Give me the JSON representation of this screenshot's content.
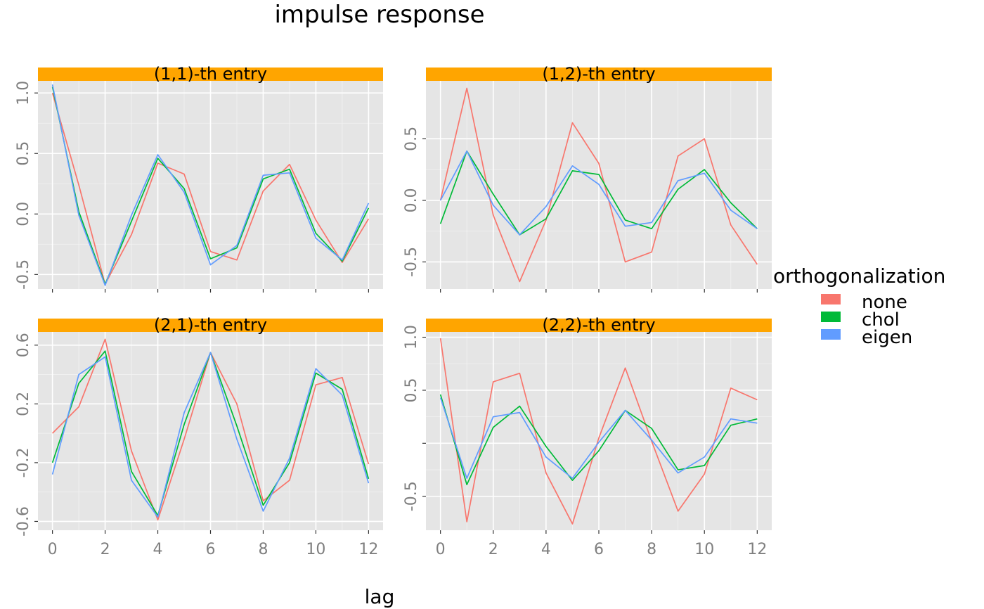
{
  "chart_data": {
    "type": "line",
    "title": "impulse response",
    "xlabel": "lag",
    "ylabel": "",
    "x": [
      0,
      1,
      2,
      3,
      4,
      5,
      6,
      7,
      8,
      9,
      10,
      11,
      12
    ],
    "x_ticks": [
      0,
      2,
      4,
      6,
      8,
      10,
      12
    ],
    "grid": true,
    "legend": {
      "title": "orthogonalization",
      "placement": "right",
      "entries": [
        {
          "name": "none",
          "color": "#F8766D"
        },
        {
          "name": "chol",
          "color": "#00BA38"
        },
        {
          "name": "eigen",
          "color": "#619CFF"
        }
      ]
    },
    "strip_color": "#FFA500",
    "panel_background": "#E5E5E5",
    "panels": [
      {
        "label": "(1,1)-th entry",
        "ylim": [
          -0.62,
          1.1
        ],
        "y_ticks": [
          -0.5,
          0.0,
          0.5,
          1.0
        ],
        "y_tick_labels": [
          "-0.5",
          "0.0",
          "0.5",
          "1.0"
        ],
        "series": [
          {
            "name": "none",
            "values": [
              1.0,
              0.24,
              -0.58,
              -0.17,
              0.42,
              0.33,
              -0.31,
              -0.38,
              0.19,
              0.41,
              -0.05,
              -0.4,
              -0.04
            ]
          },
          {
            "name": "chol",
            "values": [
              1.05,
              0.02,
              -0.58,
              -0.06,
              0.46,
              0.21,
              -0.37,
              -0.28,
              0.29,
              0.37,
              -0.16,
              -0.39,
              0.05
            ]
          },
          {
            "name": "eigen",
            "values": [
              1.07,
              -0.01,
              -0.59,
              -0.01,
              0.49,
              0.18,
              -0.42,
              -0.26,
              0.32,
              0.34,
              -0.2,
              -0.38,
              0.09
            ]
          }
        ]
      },
      {
        "label": "(1,2)-th entry",
        "ylim": [
          -0.72,
          0.97
        ],
        "y_ticks": [
          -0.5,
          0.0,
          0.5
        ],
        "y_tick_labels": [
          "-0.5",
          "0.0",
          "0.5"
        ],
        "series": [
          {
            "name": "none",
            "values": [
              0.0,
              0.91,
              -0.12,
              -0.66,
              -0.16,
              0.63,
              0.3,
              -0.5,
              -0.42,
              0.36,
              0.5,
              -0.2,
              -0.52
            ]
          },
          {
            "name": "chol",
            "values": [
              -0.19,
              0.4,
              0.05,
              -0.28,
              -0.15,
              0.24,
              0.21,
              -0.16,
              -0.23,
              0.09,
              0.25,
              -0.02,
              -0.23
            ]
          },
          {
            "name": "eigen",
            "values": [
              0.0,
              0.4,
              -0.04,
              -0.28,
              -0.05,
              0.28,
              0.13,
              -0.21,
              -0.18,
              0.16,
              0.22,
              -0.08,
              -0.23
            ]
          }
        ]
      },
      {
        "label": "(2,1)-th entry",
        "ylim": [
          -0.66,
          0.69
        ],
        "y_ticks": [
          -0.6,
          -0.2,
          0.2,
          0.6
        ],
        "y_tick_labels": [
          "-0.6",
          "-0.2",
          "0.2",
          "0.6"
        ],
        "series": [
          {
            "name": "none",
            "values": [
              0.0,
              0.18,
              0.64,
              -0.12,
              -0.59,
              -0.04,
              0.55,
              0.2,
              -0.46,
              -0.32,
              0.33,
              0.38,
              -0.21
            ]
          },
          {
            "name": "chol",
            "values": [
              -0.2,
              0.34,
              0.56,
              -0.26,
              -0.56,
              0.06,
              0.55,
              0.05,
              -0.49,
              -0.2,
              0.41,
              0.3,
              -0.31
            ]
          },
          {
            "name": "eigen",
            "values": [
              -0.28,
              0.4,
              0.52,
              -0.32,
              -0.57,
              0.14,
              0.55,
              -0.04,
              -0.53,
              -0.17,
              0.44,
              0.26,
              -0.34
            ]
          }
        ]
      },
      {
        "label": "(2,2)-th entry",
        "ylim": [
          -0.82,
          1.05
        ],
        "y_ticks": [
          -0.5,
          0.0,
          0.5,
          1.0
        ],
        "y_tick_labels": [
          "-0.5",
          "",
          "0.5",
          "1.0"
        ],
        "series": [
          {
            "name": "none",
            "values": [
              0.99,
              -0.74,
              0.58,
              0.66,
              -0.28,
              -0.76,
              0.05,
              0.71,
              0.02,
              -0.64,
              -0.29,
              0.52,
              0.41
            ]
          },
          {
            "name": "chol",
            "values": [
              0.46,
              -0.39,
              0.15,
              0.35,
              -0.03,
              -0.35,
              -0.07,
              0.31,
              0.14,
              -0.25,
              -0.21,
              0.17,
              0.23
            ]
          },
          {
            "name": "eigen",
            "values": [
              0.43,
              -0.33,
              0.25,
              0.29,
              -0.13,
              -0.33,
              0.01,
              0.31,
              0.03,
              -0.28,
              -0.13,
              0.23,
              0.19
            ]
          }
        ]
      }
    ]
  }
}
